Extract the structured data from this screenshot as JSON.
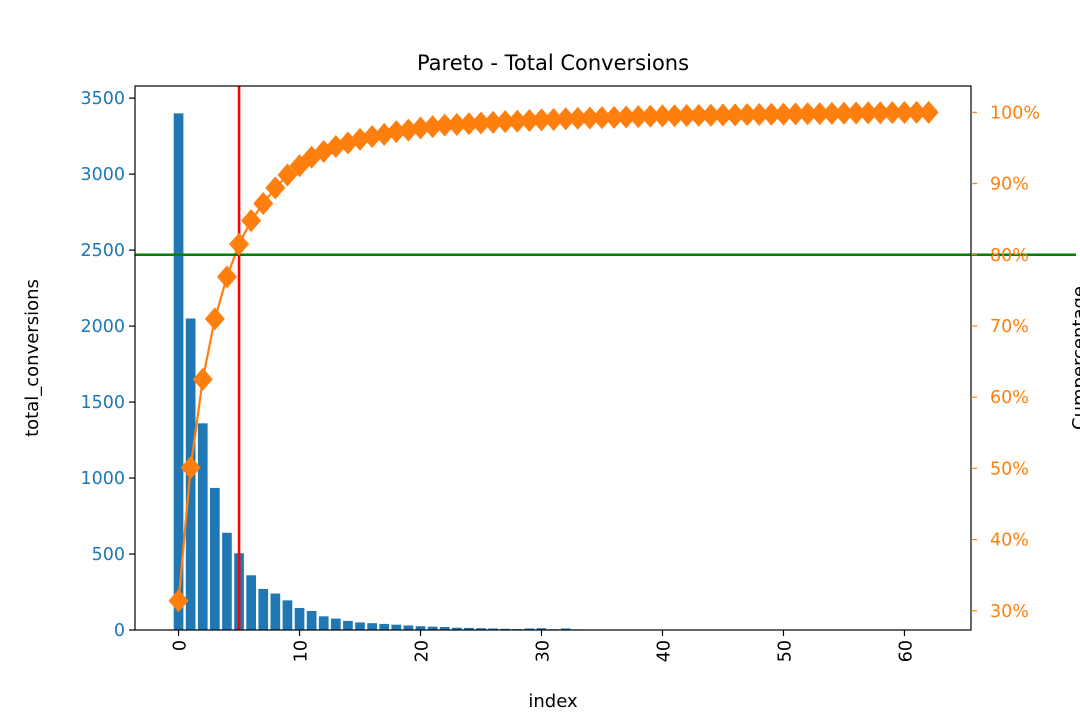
{
  "chart_data": {
    "type": "bar",
    "title": "Pareto - Total Conversions",
    "xlabel": "index",
    "ylabel": "total_conversions",
    "y2label": "Cumpercentage",
    "xlim": [
      -3.6,
      65.5
    ],
    "ylim": [
      0,
      3580
    ],
    "y2lim": [
      27.3,
      103.7
    ],
    "x_ticks": [
      0,
      10,
      20,
      30,
      40,
      50,
      60
    ],
    "y_ticks": [
      0,
      500,
      1000,
      1500,
      2000,
      2500,
      3000,
      3500
    ],
    "y2_ticks": [
      30,
      40,
      50,
      60,
      70,
      80,
      90,
      100
    ],
    "y2_tick_suffix": "%",
    "grid": false,
    "colors": {
      "bars": "#1f77b4",
      "cumulative": "#ff7f0e",
      "threshold_line": "#008000",
      "cutoff_line": "#ff0000",
      "left_axis_text": "#1f77b4",
      "right_axis_text": "#ff7f0e"
    },
    "series": [
      {
        "type": "bar",
        "axis": "left",
        "x": [
          0,
          1,
          2,
          3,
          4,
          5,
          6,
          7,
          8,
          9,
          10,
          11,
          12,
          13,
          14,
          15,
          16,
          17,
          18,
          19,
          20,
          21,
          22,
          23,
          24,
          25,
          26,
          27,
          28,
          29,
          30,
          31,
          32,
          33,
          34,
          35,
          36,
          37,
          38,
          39,
          40,
          41,
          42,
          43,
          44,
          45,
          46,
          47,
          48,
          49,
          50,
          51,
          52,
          53,
          54,
          55,
          56,
          57,
          58,
          59,
          60,
          61,
          62
        ],
        "values": [
          3400,
          2050,
          1360,
          935,
          640,
          505,
          360,
          270,
          240,
          195,
          145,
          125,
          90,
          75,
          60,
          50,
          45,
          40,
          35,
          30,
          25,
          22,
          20,
          15,
          14,
          12,
          10,
          8,
          6,
          10,
          12,
          5,
          10,
          4,
          3,
          3,
          2,
          2,
          2,
          2,
          2,
          2,
          1,
          1,
          1,
          1,
          1,
          1,
          1,
          1,
          1,
          1,
          1,
          1,
          1,
          1,
          1,
          1,
          1,
          1,
          1,
          1,
          1
        ]
      },
      {
        "type": "line",
        "axis": "right",
        "marker": "diamond",
        "x": [
          0,
          1,
          2,
          3,
          4,
          5,
          6,
          7,
          8,
          9,
          10,
          11,
          12,
          13,
          14,
          15,
          16,
          17,
          18,
          19,
          20,
          21,
          22,
          23,
          24,
          25,
          26,
          27,
          28,
          29,
          30,
          31,
          32,
          33,
          34,
          35,
          36,
          37,
          38,
          39,
          40,
          41,
          42,
          43,
          44,
          45,
          46,
          47,
          48,
          49,
          50,
          51,
          52,
          53,
          54,
          55,
          56,
          57,
          58,
          59,
          60,
          61,
          62
        ],
        "values": [
          31.4,
          50.1,
          62.5,
          71.0,
          76.9,
          81.5,
          84.8,
          87.2,
          89.4,
          91.2,
          92.5,
          93.7,
          94.5,
          95.2,
          95.7,
          96.2,
          96.6,
          96.9,
          97.3,
          97.5,
          97.8,
          98.0,
          98.2,
          98.3,
          98.4,
          98.5,
          98.6,
          98.7,
          98.75,
          98.85,
          98.95,
          99.0,
          99.1,
          99.15,
          99.2,
          99.25,
          99.3,
          99.35,
          99.4,
          99.45,
          99.5,
          99.52,
          99.55,
          99.58,
          99.6,
          99.63,
          99.65,
          99.68,
          99.7,
          99.73,
          99.75,
          99.78,
          99.8,
          99.82,
          99.85,
          99.87,
          99.9,
          99.92,
          99.94,
          99.96,
          99.98,
          99.99,
          100.0
        ]
      }
    ],
    "reference_lines": [
      {
        "orientation": "horizontal",
        "axis": "right",
        "value": 80,
        "color": "#008000"
      },
      {
        "orientation": "vertical",
        "value": 5,
        "color": "#ff0000"
      }
    ]
  }
}
